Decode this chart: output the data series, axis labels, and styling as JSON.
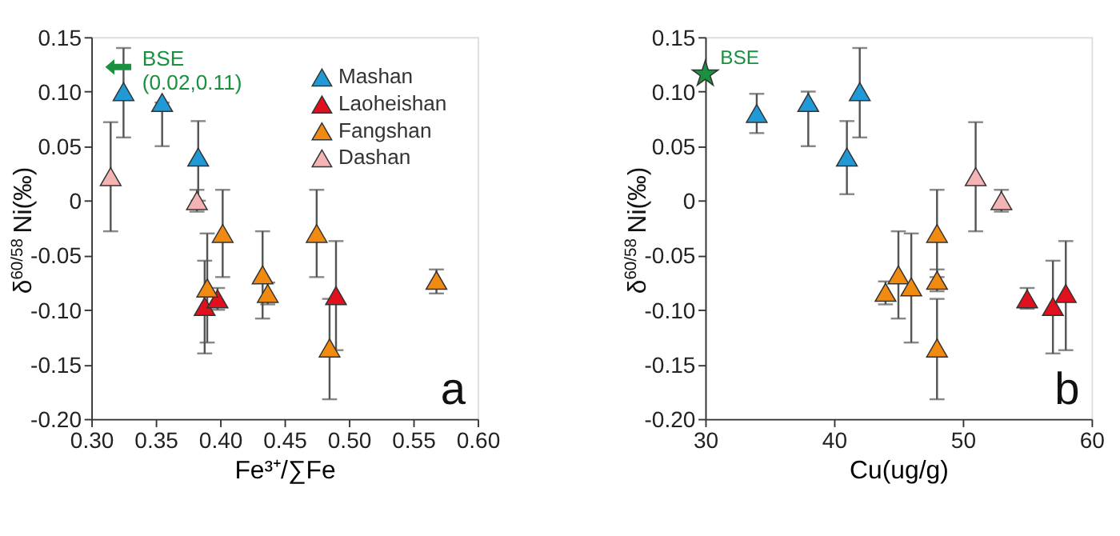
{
  "chart_data": [
    {
      "type": "scatter",
      "xlabel": "Fe³⁺/∑Fe",
      "ylabel": "δ$^{60/58}$Ni(‰)",
      "marker": "triangle",
      "legend": "top right",
      "grid": false,
      "xlim": [
        0.3,
        0.6
      ],
      "xticks": [
        {
          "value": 0.3,
          "label": "0.30"
        },
        0.35,
        {
          "value": 0.4,
          "label": "0.40"
        },
        0.45,
        {
          "value": 0.5,
          "label": "0.50"
        },
        0.55,
        {
          "value": 0.6,
          "label": "0.60"
        }
      ],
      "ylim": [
        -0.2,
        0.15
      ],
      "yticks": [
        {
          "value": -0.2,
          "label": "-0.20"
        },
        -0.15,
        {
          "value": -0.1,
          "label": "-0.10"
        },
        -0.05,
        0,
        0.05,
        {
          "value": 0.1,
          "label": "0.10"
        },
        0.15
      ],
      "annotations": [
        "BSE\n(0.02,0.11)",
        "a"
      ],
      "series": [
        {
          "name": "Mashan",
          "color": "#1f9ad6",
          "x": [
            0.325,
            0.355,
            0.383
          ],
          "values": [
            0.1,
            0.09,
            0.04
          ],
          "errors": [
            [
              0.058,
              0.14
            ],
            [
              0.05,
              0.09
            ],
            [
              0.0,
              0.073
            ]
          ]
        },
        {
          "name": "Laoheishan",
          "color": "#e0101e",
          "x": [
            0.388,
            0.398,
            0.49
          ],
          "values": [
            -0.097,
            -0.09,
            -0.087
          ],
          "errors": [
            [
              -0.14,
              -0.055
            ],
            [
              -0.1,
              -0.08
            ],
            [
              -0.137,
              -0.037
            ]
          ]
        },
        {
          "name": "Fangshan",
          "color": "#f08a10",
          "x": [
            0.39,
            0.402,
            0.433,
            0.437,
            0.475,
            0.485,
            0.568
          ],
          "values": [
            -0.08,
            -0.03,
            -0.068,
            -0.085,
            -0.03,
            -0.135,
            -0.073
          ],
          "errors": [
            [
              -0.13,
              -0.03
            ],
            [
              -0.07,
              0.01
            ],
            [
              -0.108,
              -0.028
            ],
            [
              -0.095,
              -0.075
            ],
            [
              -0.07,
              0.01
            ],
            [
              -0.182,
              -0.09
            ],
            [
              -0.085,
              -0.063
            ]
          ]
        },
        {
          "name": "Dashan",
          "color": "#f4b4b4",
          "x": [
            0.315,
            0.382
          ],
          "values": [
            0.022,
            0.0
          ],
          "errors": [
            [
              -0.028,
              0.072
            ],
            [
              -0.01,
              0.01
            ]
          ]
        }
      ]
    },
    {
      "type": "scatter",
      "xlabel": "Cu(ug/g)",
      "ylabel": "δ$^{60/58}$Ni(‰)",
      "marker": "triangle",
      "grid": false,
      "xlim": [
        30,
        60
      ],
      "xticks": [
        30,
        40,
        50,
        60
      ],
      "ylim": [
        -0.2,
        0.15
      ],
      "yticks": [
        {
          "value": -0.2,
          "label": "-0.20"
        },
        -0.15,
        {
          "value": -0.1,
          "label": "-0.10"
        },
        -0.05,
        0,
        0.05,
        {
          "value": 0.1,
          "label": "0.10"
        },
        0.15
      ],
      "annotations": [
        "b"
      ],
      "series": [
        {
          "color": "#1f9ad6",
          "x": [
            34,
            38,
            41,
            42
          ],
          "values": [
            0.08,
            0.09,
            0.04,
            0.1
          ],
          "errors": [
            [
              0.062,
              0.098
            ],
            [
              0.05,
              0.1
            ],
            [
              0.006,
              0.073
            ],
            [
              0.058,
              0.14
            ]
          ]
        },
        {
          "color": "#f08a10",
          "x": [
            44,
            45,
            46,
            48,
            48,
            48
          ],
          "values": [
            -0.084,
            -0.068,
            -0.079,
            -0.03,
            -0.073,
            -0.135
          ],
          "errors": [
            [
              -0.095,
              -0.074
            ],
            [
              -0.108,
              -0.028
            ],
            [
              -0.13,
              -0.03
            ],
            [
              -0.07,
              0.01
            ],
            [
              -0.083,
              -0.063
            ],
            [
              -0.182,
              -0.09
            ]
          ]
        },
        {
          "color": "#f4b4b4",
          "x": [
            51,
            53
          ],
          "values": [
            0.022,
            0.0
          ],
          "errors": [
            [
              -0.028,
              0.072
            ],
            [
              -0.01,
              0.01
            ]
          ]
        },
        {
          "color": "#e0101e",
          "x": [
            55,
            57,
            58
          ],
          "values": [
            -0.09,
            -0.097,
            -0.085
          ],
          "errors": [
            [
              -0.099,
              -0.08
            ],
            [
              -0.14,
              -0.055
            ],
            [
              -0.137,
              -0.037
            ]
          ]
        },
        {
          "name": "BSE",
          "color": "#1a9040",
          "marker": "star",
          "x": [
            30
          ],
          "values": [
            0.116
          ]
        }
      ]
    }
  ]
}
